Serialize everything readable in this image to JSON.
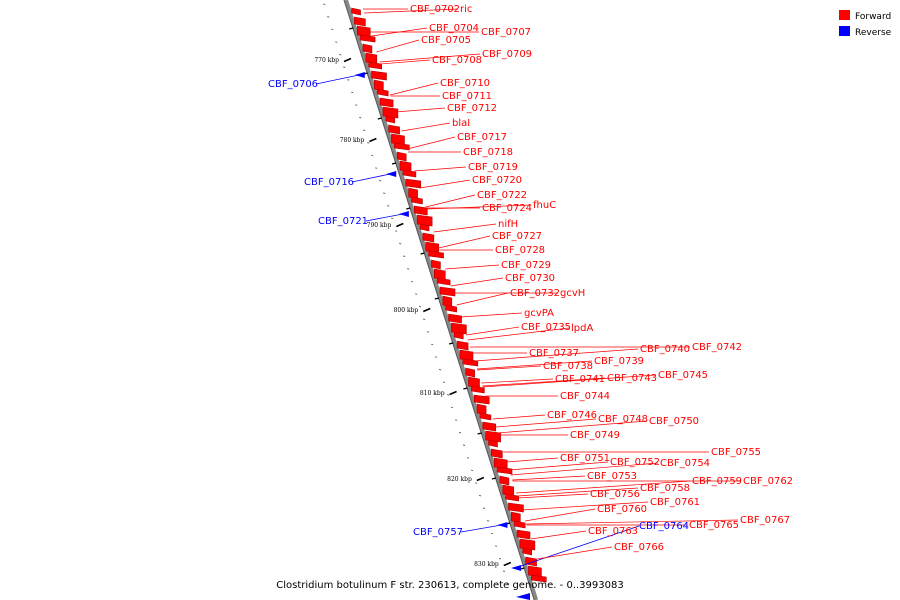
{
  "caption": "Clostridium botulinum F str. 230613, complete genome. - 0..3993083",
  "legend": {
    "forward": {
      "label": "Forward",
      "color": "#ff0000"
    },
    "reverse": {
      "label": "Reverse",
      "color": "#0000ff"
    }
  },
  "ticks": [
    "770 kbp",
    "780 kbp",
    "790 kbp",
    "800 kbp",
    "810 kbp",
    "820 kbp",
    "830 kbp"
  ],
  "forward_labels": [
    "CBF_0702",
    "ric",
    "CBF_0704",
    "CBF_0705",
    "CBF_0707",
    "CBF_0708",
    "CBF_0709",
    "CBF_0710",
    "CBF_0711",
    "CBF_0712",
    "blaI",
    "CBF_0717",
    "CBF_0718",
    "CBF_0719",
    "CBF_0720",
    "CBF_0722",
    "CBF_0724",
    "fhuC",
    "nifH",
    "CBF_0727",
    "CBF_0728",
    "CBF_0729",
    "CBF_0730",
    "CBF_0732",
    "gcvH",
    "gcvPA",
    "CBF_0735",
    "lpdA",
    "CBF_0737",
    "CBF_0738",
    "CBF_0739",
    "CBF_0740",
    "CBF_0742",
    "CBF_0741",
    "CBF_0743",
    "CBF_0745",
    "CBF_0744",
    "CBF_0746",
    "CBF_0748",
    "CBF_0750",
    "CBF_0749",
    "CBF_0751",
    "CBF_0752",
    "CBF_0754",
    "CBF_0755",
    "CBF_0753",
    "CBF_0758",
    "CBF_0759",
    "CBF_0762",
    "CBF_0756",
    "CBF_0761",
    "CBF_0760",
    "CBF_0765",
    "CBF_0767",
    "CBF_0763",
    "CBF_0766"
  ],
  "reverse_labels": [
    "CBF_0706",
    "CBF_0716",
    "CBF_0721",
    "CBF_0757",
    "CBF_0764"
  ]
}
